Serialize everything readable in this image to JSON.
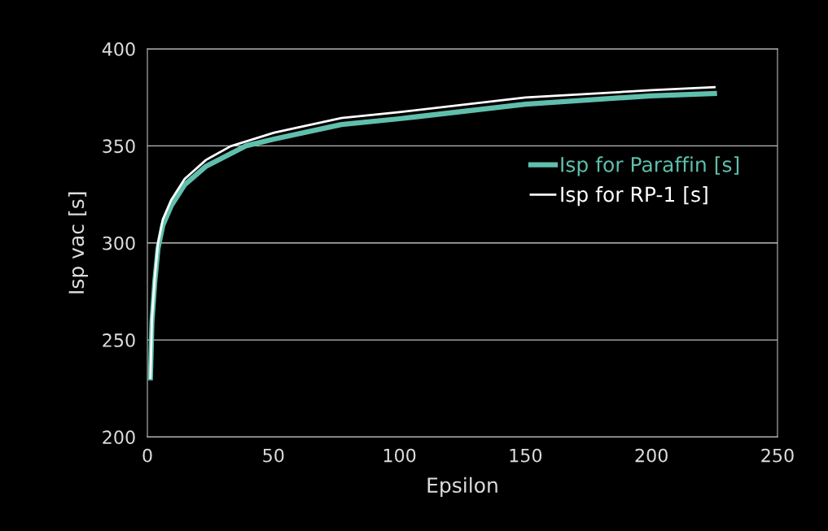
{
  "chart_data": {
    "type": "line",
    "xlabel": "Epsilon",
    "ylabel": "Isp vac [s]",
    "xlim": [
      0,
      250
    ],
    "xticks": [
      0,
      50,
      100,
      150,
      200,
      250
    ],
    "ylim": [
      200,
      400
    ],
    "yticks": [
      200,
      250,
      300,
      350,
      400
    ],
    "grid": "y",
    "legend": "top right",
    "marker": "none",
    "line_style": "solid",
    "series": [
      {
        "name": "Isp for Paraffin [s]",
        "color": "#5fbfac",
        "x": [
          1.2,
          1.8,
          2.9,
          4.2,
          6.1,
          9.4,
          14.8,
          23.3,
          39,
          50.3,
          77,
          100,
          150,
          200,
          225
        ],
        "values": [
          230.5,
          259,
          279.5,
          297,
          309,
          319,
          330,
          339.5,
          350,
          353.5,
          361,
          364,
          371.5,
          375.8,
          377
        ]
      },
      {
        "name": "Isp for RP-1 [s]",
        "color": "#ffffff",
        "x": [
          1.2,
          1.8,
          2.9,
          4.2,
          6.1,
          9.4,
          14.8,
          23.3,
          33,
          50.3,
          77,
          100,
          150,
          200,
          225
        ],
        "values": [
          230.5,
          260.6,
          281.6,
          299.6,
          312,
          322,
          333,
          342.8,
          349.8,
          356.8,
          364.4,
          367.4,
          374.9,
          378.7,
          380.3
        ]
      }
    ]
  }
}
